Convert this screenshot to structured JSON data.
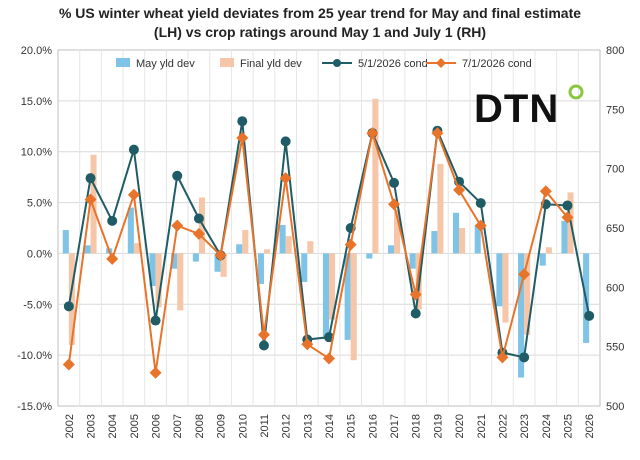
{
  "chart_data": {
    "type": "bar",
    "title_lines": [
      "% US winter wheat yield deviates from 25 year trend for May and final estimate",
      "(LH) vs crop ratings around May 1 and July 1 (RH)"
    ],
    "categories": [
      "2002",
      "2003",
      "2004",
      "2005",
      "2006",
      "2007",
      "2008",
      "2009",
      "2010",
      "2011",
      "2012",
      "2013",
      "2014",
      "2015",
      "2016",
      "2017",
      "2018",
      "2019",
      "2020",
      "2021",
      "2022",
      "2023",
      "2024",
      "2025",
      "2026"
    ],
    "left_axis": {
      "min": -15,
      "max": 20,
      "step": 5,
      "ticks": [
        "-15.0%",
        "-10.0%",
        "-5.0%",
        "0.0%",
        "5.0%",
        "10.0%",
        "15.0%",
        "20.0%"
      ]
    },
    "right_axis": {
      "min": 500,
      "max": 800,
      "step": 50,
      "ticks": [
        "500",
        "550",
        "600",
        "650",
        "700",
        "750",
        "800"
      ]
    },
    "grid": true,
    "legend_position": "top",
    "series": [
      {
        "name": "May yld dev",
        "kind": "bar",
        "axis": "left",
        "color": "#7fc3e6",
        "values": [
          2.3,
          0.8,
          0.5,
          4.5,
          -3.2,
          -1.5,
          -0.8,
          -1.8,
          0.9,
          -3.0,
          2.8,
          -2.8,
          -8.2,
          -8.5,
          -0.5,
          0.8,
          -1.5,
          2.2,
          4.0,
          2.8,
          -5.2,
          -12.2,
          -1.2,
          3.2,
          -8.8
        ]
      },
      {
        "name": "Final yld dev",
        "kind": "bar",
        "axis": "left",
        "color": "#f5c6a8",
        "values": [
          -9.0,
          9.7,
          0.0,
          1.0,
          -5.3,
          -5.6,
          5.5,
          -2.3,
          2.3,
          0.4,
          1.7,
          1.2,
          -6.5,
          -10.5,
          15.2,
          4.3,
          -5.5,
          8.8,
          2.5,
          0.0,
          -6.8,
          -8.0,
          0.6,
          6.0,
          0
        ]
      },
      {
        "name": "5/1/2026 cond",
        "kind": "line",
        "axis": "right",
        "color": "#1f5c66",
        "values": [
          584,
          692,
          656,
          716,
          572,
          694,
          658,
          627,
          740,
          551,
          723,
          556,
          558,
          650,
          730,
          688,
          578,
          732,
          689,
          671,
          545,
          541,
          670,
          669,
          576
        ]
      },
      {
        "name": "7/1/2026 cond",
        "kind": "line",
        "axis": "right",
        "color": "#e8732a",
        "values": [
          535,
          674,
          624,
          678,
          528,
          652,
          645,
          627,
          726,
          560,
          692,
          552,
          540,
          636,
          730,
          670,
          594,
          730,
          682,
          652,
          541,
          611,
          681,
          659,
          null
        ]
      }
    ]
  },
  "logo": {
    "text": "DTN",
    "accent_color": "#8cc63f",
    "text_color": "#111111"
  }
}
